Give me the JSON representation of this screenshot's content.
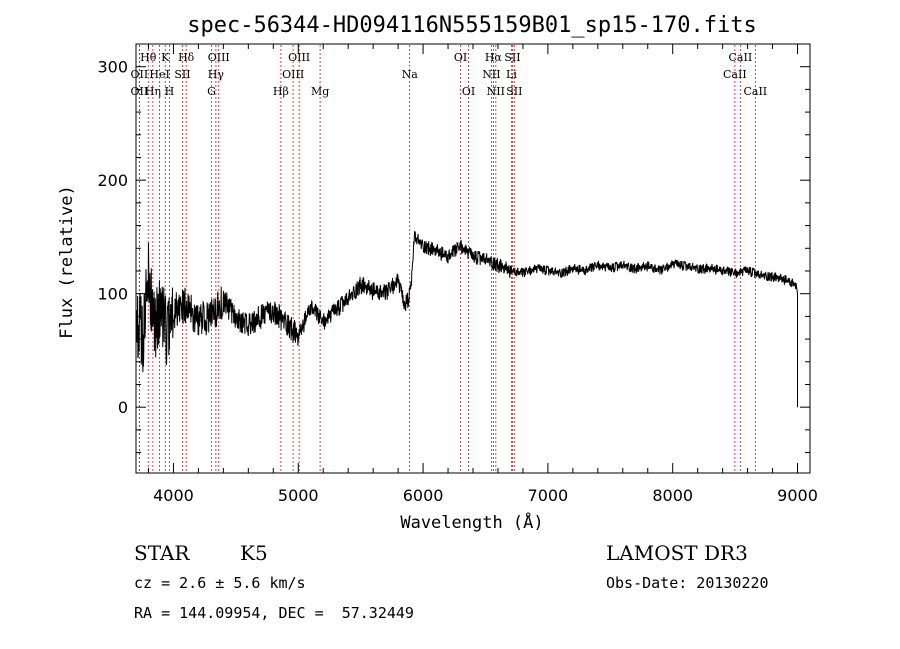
{
  "chart_data": {
    "type": "line",
    "title": "spec-56344-HD094116N555159B01_sp15-170.fits",
    "xlabel": "Wavelength (Å)",
    "ylabel": "Flux (relative)",
    "xlim": [
      3700,
      9100
    ],
    "ylim": [
      -58,
      320
    ],
    "x_ticks": [
      4000,
      5000,
      6000,
      7000,
      8000,
      9000
    ],
    "y_ticks": [
      0,
      100,
      200,
      300
    ],
    "grid": false,
    "legend": "none",
    "series_color": "#000000",
    "line_color": "#b22222",
    "spectrum_anchors": [
      [
        3700,
        80
      ],
      [
        3760,
        60
      ],
      [
        3800,
        120
      ],
      [
        3850,
        70
      ],
      [
        3900,
        90
      ],
      [
        3950,
        60
      ],
      [
        4000,
        85
      ],
      [
        4100,
        90
      ],
      [
        4200,
        75
      ],
      [
        4300,
        80
      ],
      [
        4400,
        95
      ],
      [
        4500,
        78
      ],
      [
        4600,
        72
      ],
      [
        4700,
        80
      ],
      [
        4800,
        85
      ],
      [
        4900,
        75
      ],
      [
        5000,
        62
      ],
      [
        5100,
        88
      ],
      [
        5200,
        75
      ],
      [
        5300,
        85
      ],
      [
        5400,
        95
      ],
      [
        5500,
        108
      ],
      [
        5600,
        102
      ],
      [
        5700,
        100
      ],
      [
        5800,
        112
      ],
      [
        5850,
        88
      ],
      [
        5900,
        100
      ],
      [
        5930,
        150
      ],
      [
        6000,
        142
      ],
      [
        6100,
        138
      ],
      [
        6200,
        132
      ],
      [
        6300,
        142
      ],
      [
        6400,
        132
      ],
      [
        6500,
        130
      ],
      [
        6600,
        125
      ],
      [
        6700,
        120
      ],
      [
        6800,
        118
      ],
      [
        6900,
        122
      ],
      [
        7000,
        120
      ],
      [
        7100,
        118
      ],
      [
        7200,
        122
      ],
      [
        7300,
        120
      ],
      [
        7400,
        125
      ],
      [
        7500,
        122
      ],
      [
        7600,
        125
      ],
      [
        7700,
        122
      ],
      [
        7800,
        124
      ],
      [
        7900,
        120
      ],
      [
        8000,
        126
      ],
      [
        8100,
        124
      ],
      [
        8200,
        122
      ],
      [
        8300,
        122
      ],
      [
        8400,
        120
      ],
      [
        8500,
        118
      ],
      [
        8600,
        120
      ],
      [
        8700,
        116
      ],
      [
        8800,
        115
      ],
      [
        8900,
        112
      ],
      [
        8980,
        108
      ],
      [
        9000,
        100
      ]
    ],
    "emission_lines": [
      {
        "label": "Hθ",
        "x": 3798,
        "row": 0
      },
      {
        "label": "OII",
        "x": 3727,
        "row": 1
      },
      {
        "label": "OII",
        "x": 3727,
        "row": 2
      },
      {
        "label": "K",
        "x": 3934,
        "row": 0
      },
      {
        "label": "HeI",
        "x": 3889,
        "row": 1
      },
      {
        "label": "Hη",
        "x": 3835,
        "row": 2
      },
      {
        "label": "H",
        "x": 3968,
        "row": 2
      },
      {
        "label": "Hδ",
        "x": 4102,
        "row": 0
      },
      {
        "label": "SII",
        "x": 4072,
        "row": 1
      },
      {
        "label": "OIII",
        "x": 4363,
        "row": 0
      },
      {
        "label": "Hγ",
        "x": 4340,
        "row": 1
      },
      {
        "label": "G",
        "x": 4305,
        "row": 2
      },
      {
        "label": "OIII",
        "x": 5007,
        "row": 0
      },
      {
        "label": "OIII",
        "x": 4959,
        "row": 1
      },
      {
        "label": "Hβ",
        "x": 4861,
        "row": 2
      },
      {
        "label": "Mg",
        "x": 5175,
        "row": 2
      },
      {
        "label": "Na",
        "x": 5893,
        "row": 1
      },
      {
        "label": "OI",
        "x": 6300,
        "row": 0
      },
      {
        "label": "OI",
        "x": 6364,
        "row": 2
      },
      {
        "label": "Hα",
        "x": 6563,
        "row": 0
      },
      {
        "label": "SII",
        "x": 6716,
        "row": 0
      },
      {
        "label": "NII",
        "x": 6548,
        "row": 1
      },
      {
        "label": "Li",
        "x": 6708,
        "row": 1
      },
      {
        "label": "NII",
        "x": 6583,
        "row": 2
      },
      {
        "label": "SII",
        "x": 6731,
        "row": 2
      },
      {
        "label": "CaII",
        "x": 8542,
        "row": 0
      },
      {
        "label": "CaII",
        "x": 8498,
        "row": 1
      },
      {
        "label": "CaII",
        "x": 8662,
        "row": 2
      }
    ]
  },
  "info": {
    "class_label": "STAR",
    "subclass_label": "K5",
    "survey_label": "LAMOST DR3",
    "cz_text": "cz = 2.6 ± 5.6 km/s",
    "obs_date_text": "Obs-Date: 20130220",
    "coords_text": "RA = 144.09954, DEC =  57.32449"
  }
}
